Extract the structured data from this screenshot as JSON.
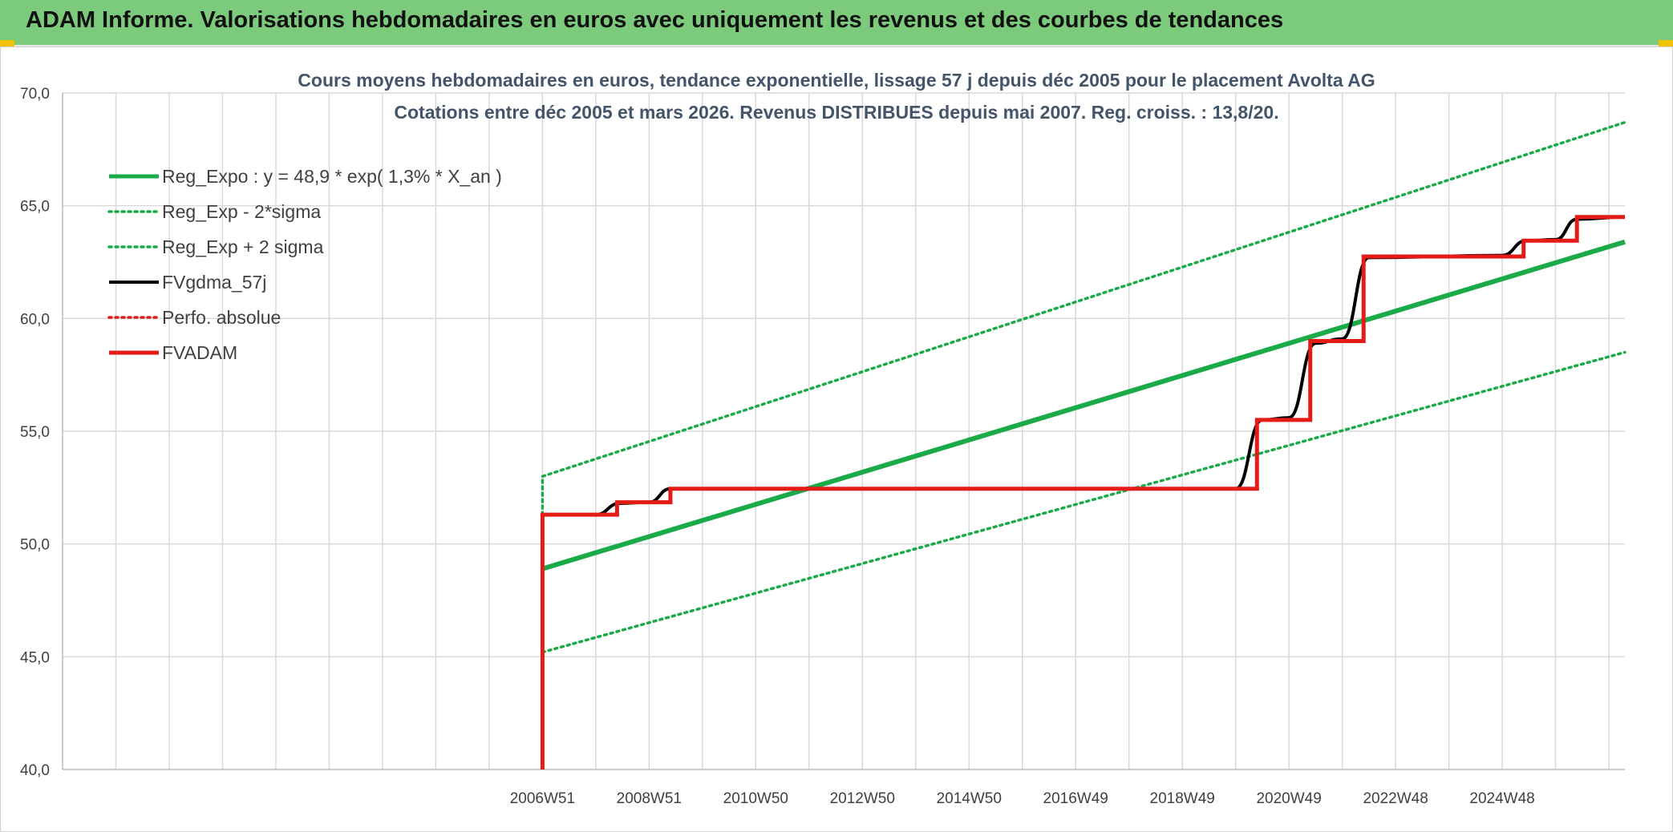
{
  "banner": {
    "title": "ADAM Informe. Valorisations hebdomadaires en euros avec uniquement les revenus et des courbes de tendances"
  },
  "colors": {
    "banner_bg": "#7ccb7c",
    "trend_green": "#1aaa48",
    "black": "#000000",
    "red": "#e41b17",
    "grid": "#d9d9d9",
    "text": "#404040"
  },
  "chart_data": {
    "type": "line",
    "title": "Cours moyens hebdomadaires en euros, tendance exponentielle, lissage 57 j depuis déc 2005 pour le placement Avolta AG",
    "subtitle": "Cotations entre déc 2005 et mars 2026. Revenus DISTRIBUES depuis mai 2007. Reg. croiss. : 13,8/20.",
    "xlabel": "",
    "ylabel": "",
    "ylim": [
      40,
      70
    ],
    "yticks": [
      "40,0",
      "45,0",
      "50,0",
      "55,0",
      "60,0",
      "65,0",
      "70,0"
    ],
    "xticks": [
      "2006W51",
      "2008W51",
      "2010W50",
      "2012W50",
      "2014W50",
      "2016W49",
      "2018W49",
      "2020W49",
      "2022W48",
      "2024W48"
    ],
    "xtick_years": [
      2007.0,
      2009.0,
      2011.0,
      2013.0,
      2015.0,
      2017.0,
      2019.0,
      2021.0,
      2023.0,
      2025.0
    ],
    "x_range_years": [
      1998.0,
      2027.3
    ],
    "grid": true,
    "legend_position": "top-left",
    "series": [
      {
        "name": "Reg_Expo : y = 48,9 * exp( 1,3% *  X_an )",
        "style": "thick-solid",
        "color": "#1aaa48",
        "points": [
          [
            2007.0,
            48.9
          ],
          [
            2027.3,
            63.4
          ]
        ]
      },
      {
        "name": "Reg_Exp - 2*sigma",
        "style": "dotted",
        "color": "#1aaa48",
        "points": [
          [
            2007.0,
            45.2
          ],
          [
            2027.3,
            58.5
          ]
        ]
      },
      {
        "name": "Reg_Exp + 2 sigma",
        "style": "dotted",
        "color": "#1aaa48",
        "points": [
          [
            2007.0,
            51.3
          ],
          [
            2007.0,
            53.0
          ],
          [
            2027.3,
            68.7
          ]
        ]
      },
      {
        "name": "FVgdma_57j",
        "style": "smooth-solid",
        "color": "#000000",
        "points": [
          [
            2007.0,
            51.3
          ],
          [
            2008.0,
            51.3
          ],
          [
            2008.45,
            51.8
          ],
          [
            2009.0,
            51.85
          ],
          [
            2009.4,
            52.45
          ],
          [
            2020.0,
            52.45
          ],
          [
            2020.5,
            55.5
          ],
          [
            2021.0,
            55.6
          ],
          [
            2021.5,
            58.9
          ],
          [
            2022.0,
            59.1
          ],
          [
            2022.5,
            62.7
          ],
          [
            2025.0,
            62.8
          ],
          [
            2025.45,
            63.45
          ],
          [
            2026.0,
            63.5
          ],
          [
            2026.4,
            64.4
          ],
          [
            2027.3,
            64.5
          ]
        ]
      },
      {
        "name": "Perfo. absolue",
        "style": "dotted",
        "color": "#e41b17",
        "points": []
      },
      {
        "name": "FVADAM",
        "style": "thick-step",
        "color": "#e41b17",
        "points": [
          [
            2007.0,
            40.0
          ],
          [
            2007.0,
            51.3
          ],
          [
            2008.4,
            51.3
          ],
          [
            2008.4,
            51.85
          ],
          [
            2009.4,
            51.85
          ],
          [
            2009.4,
            52.45
          ],
          [
            2020.4,
            52.45
          ],
          [
            2020.4,
            55.5
          ],
          [
            2021.4,
            55.5
          ],
          [
            2021.4,
            59.0
          ],
          [
            2022.4,
            59.0
          ],
          [
            2022.4,
            62.75
          ],
          [
            2025.4,
            62.75
          ],
          [
            2025.4,
            63.45
          ],
          [
            2026.4,
            63.45
          ],
          [
            2026.4,
            64.5
          ],
          [
            2027.3,
            64.5
          ]
        ]
      }
    ]
  }
}
